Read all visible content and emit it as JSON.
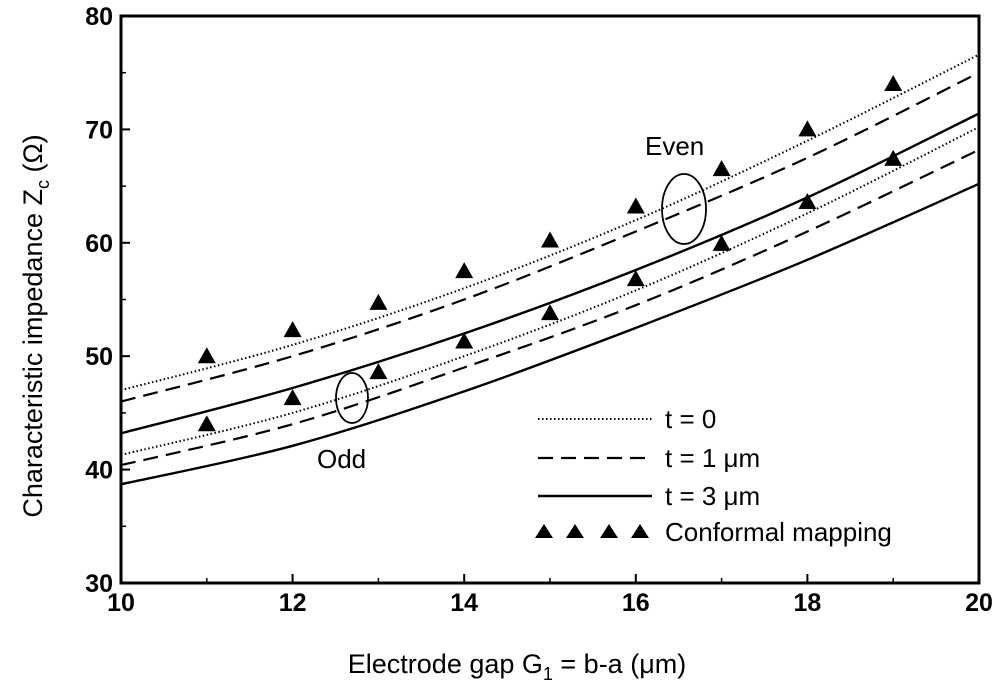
{
  "chart_data": {
    "type": "line",
    "title": "",
    "xlabel": "Electrode gap G₁ = b-a (μm)",
    "ylabel": "Characteristic impedance Zₑ (Ω)",
    "xlabel_parts": {
      "pre": "Electrode gap G",
      "sub": "1",
      "post": " = b-a (μm)"
    },
    "ylabel_parts": {
      "pre": "Characteristic impedance Z",
      "sub": "c",
      "post": " (Ω)"
    },
    "xlim": [
      10,
      20
    ],
    "ylim": [
      30,
      80
    ],
    "x_ticks": [
      10,
      12,
      14,
      16,
      18,
      20
    ],
    "y_ticks": [
      30,
      40,
      50,
      60,
      70,
      80
    ],
    "grid": false,
    "legend_position": "bottom-right",
    "annotations": {
      "even": "Even",
      "odd": "Odd"
    },
    "legend": [
      {
        "label": "t = 0",
        "style": "dotted"
      },
      {
        "label": "t = 1 μm",
        "style": "dashed"
      },
      {
        "label": "t = 3 μm",
        "style": "solid"
      },
      {
        "label": "Conformal mapping",
        "style": "triangle"
      }
    ],
    "series": [
      {
        "group": "even",
        "style": "dotted",
        "x": [
          10,
          12,
          14,
          16,
          18,
          20
        ],
        "values": [
          47.0,
          51.0,
          56.0,
          62.0,
          69.0,
          76.6
        ]
      },
      {
        "group": "even",
        "style": "dashed",
        "x": [
          10,
          12,
          14,
          16,
          18,
          20
        ],
        "values": [
          46.0,
          50.0,
          55.0,
          61.0,
          67.5,
          75.0
        ]
      },
      {
        "group": "even",
        "style": "solid",
        "x": [
          10,
          12,
          14,
          16,
          18,
          20
        ],
        "values": [
          43.2,
          47.2,
          52.0,
          57.6,
          64.0,
          71.4
        ]
      },
      {
        "group": "odd",
        "style": "dotted",
        "x": [
          10,
          12,
          14,
          16,
          18,
          20
        ],
        "values": [
          41.3,
          45.0,
          50.0,
          55.8,
          62.6,
          70.2
        ]
      },
      {
        "group": "odd",
        "style": "dashed",
        "x": [
          10,
          12,
          14,
          16,
          18,
          20
        ],
        "values": [
          40.4,
          44.0,
          49.0,
          54.5,
          61.0,
          68.2
        ]
      },
      {
        "group": "odd",
        "style": "solid",
        "x": [
          10,
          12,
          14,
          16,
          18,
          20
        ],
        "values": [
          38.7,
          42.1,
          46.9,
          52.5,
          58.5,
          65.2
        ]
      }
    ],
    "markers": {
      "name": "Conformal mapping",
      "even": {
        "x": [
          11,
          12,
          13,
          14,
          15,
          16,
          17,
          18,
          19
        ],
        "values": [
          50.0,
          52.3,
          54.7,
          57.5,
          60.2,
          63.2,
          66.5,
          70.0,
          74.0
        ]
      },
      "odd": {
        "x": [
          11,
          12,
          13,
          14,
          15,
          16,
          17,
          18,
          19
        ],
        "values": [
          44.0,
          46.3,
          48.6,
          51.3,
          53.8,
          56.8,
          59.9,
          63.6,
          67.4
        ]
      }
    }
  }
}
